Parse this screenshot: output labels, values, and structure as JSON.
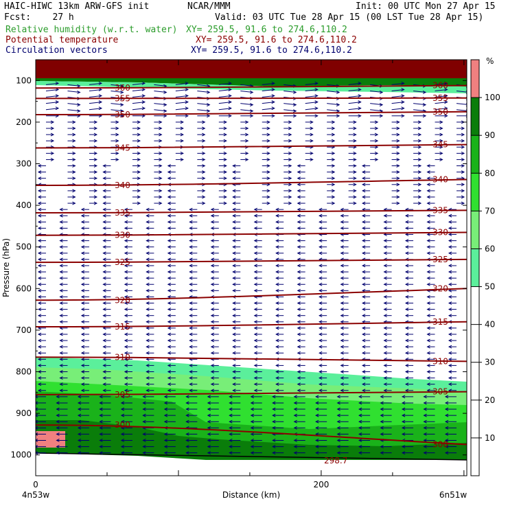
{
  "header": {
    "model": "HAIC-HIWC 13km ARW-GFS init",
    "org": "NCAR/MMM",
    "init": "Init: 00 UTC Mon 27 Apr 15",
    "fcst": "Fcst:    27 h",
    "valid": "Valid: 03 UTC Tue 28 Apr 15 (00 LST Tue 28 Apr 15)",
    "field1": "Relative humidity (w.r.t. water)",
    "field1_xy": "XY= 259.5, 91.6 to 274.6,110.2",
    "field2": "Potential temperature",
    "field2_xy": "XY= 259.5, 91.6 to 274.6,110.2",
    "field3": "Circulation vectors",
    "field3_xy": "XY= 259.5, 91.6 to 274.6,110.2"
  },
  "colors": {
    "header_text": "#000000",
    "rh": "#2b9c2b",
    "theta": "#8b0000",
    "vectors": "#00006e",
    "axis": "#000000"
  },
  "chart_data": {
    "type": "cross-section",
    "x": {
      "label": "Distance (km)",
      "lim": [
        0,
        302
      ],
      "ticks": [
        0,
        200
      ],
      "left_end_label": "4n53w",
      "right_end_label": "6n51w"
    },
    "y": {
      "label": "Pressure (hPa)",
      "lim": [
        1050,
        50
      ],
      "ticks": [
        100,
        200,
        300,
        400,
        500,
        600,
        700,
        800,
        900,
        1000
      ]
    },
    "colorbar": {
      "unit": "%",
      "ticks": [
        10,
        20,
        30,
        40,
        50,
        60,
        70,
        80,
        90,
        100
      ],
      "bins": [
        {
          "range": [
            50,
            60
          ],
          "color": "#5bef9b"
        },
        {
          "range": [
            60,
            70
          ],
          "color": "#78ee78"
        },
        {
          "range": [
            70,
            80
          ],
          "color": "#30e030"
        },
        {
          "range": [
            80,
            90
          ],
          "color": "#1ab21a"
        },
        {
          "range": [
            90,
            100
          ],
          "color": "#0a7d0a"
        },
        {
          "range": [
            100,
            110
          ],
          "color": "#f08080"
        }
      ]
    },
    "theta_contours": [
      {
        "value": 300,
        "p_left": 928,
        "p_right": 975
      },
      {
        "value": 305,
        "p_left": 855,
        "p_right": 848
      },
      {
        "value": 310,
        "p_left": 765,
        "p_right": 775
      },
      {
        "value": 315,
        "p_left": 692,
        "p_right": 680
      },
      {
        "value": 320,
        "p_left": 628,
        "p_right": 600
      },
      {
        "value": 325,
        "p_left": 537,
        "p_right": 530
      },
      {
        "value": 330,
        "p_left": 472,
        "p_right": 465
      },
      {
        "value": 335,
        "p_left": 418,
        "p_right": 412
      },
      {
        "value": 340,
        "p_left": 352,
        "p_right": 338
      },
      {
        "value": 345,
        "p_left": 262,
        "p_right": 254
      },
      {
        "value": 350,
        "p_left": 182,
        "p_right": 175
      },
      {
        "value": 355,
        "p_left": 143,
        "p_right": 142
      },
      {
        "value": 360,
        "p_left": 118,
        "p_right": 112
      }
    ],
    "terrain_label": "298.7",
    "grid": false
  }
}
